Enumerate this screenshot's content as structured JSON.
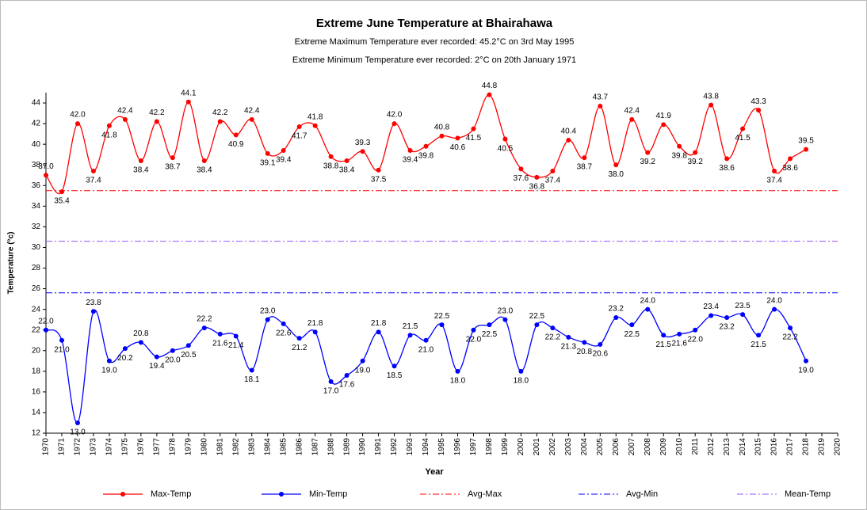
{
  "chart_data": {
    "type": "line",
    "title": "Extreme June Temperature at Bhairahawa",
    "subtitle": [
      "Extreme Maximum Temperature ever recorded: 45.2°C on 3rd May 1995",
      "Extreme Minimum Temperature ever recorded: 2°C on  20th January 1971"
    ],
    "x_label": "Year",
    "y_label": "Temperature (°c)",
    "x": [
      1970,
      1971,
      1972,
      1973,
      1974,
      1975,
      1976,
      1977,
      1978,
      1979,
      1980,
      1981,
      1982,
      1983,
      1984,
      1985,
      1986,
      1987,
      1988,
      1989,
      1990,
      1991,
      1992,
      1993,
      1994,
      1995,
      1996,
      1997,
      1998,
      1999,
      2000,
      2001,
      2002,
      2003,
      2004,
      2005,
      2006,
      2007,
      2008,
      2009,
      2010,
      2011,
      2012,
      2013,
      2014,
      2015,
      2016,
      2017,
      2018
    ],
    "xlim": [
      1970,
      2020
    ],
    "xticks": [
      1970,
      1971,
      1972,
      1973,
      1974,
      1975,
      1976,
      1977,
      1978,
      1979,
      1980,
      1981,
      1982,
      1983,
      1984,
      1985,
      1986,
      1987,
      1988,
      1989,
      1990,
      1991,
      1992,
      1993,
      1994,
      1995,
      1996,
      1997,
      1998,
      1999,
      2000,
      2001,
      2002,
      2003,
      2004,
      2005,
      2006,
      2007,
      2008,
      2009,
      2010,
      2011,
      2012,
      2013,
      2014,
      2015,
      2016,
      2017,
      2018,
      2019,
      2020
    ],
    "ylim": [
      12,
      45
    ],
    "yticks": [
      12,
      14,
      16,
      18,
      20,
      22,
      24,
      26,
      28,
      30,
      32,
      34,
      36,
      38,
      40,
      42,
      44
    ],
    "legend": "bottom",
    "series": [
      {
        "name": "Max-Temp",
        "color": "#ff0000",
        "values": [
          37.0,
          35.4,
          42.0,
          37.4,
          41.8,
          42.4,
          38.4,
          42.2,
          38.7,
          44.1,
          38.4,
          42.2,
          40.9,
          42.4,
          39.1,
          39.4,
          41.7,
          41.8,
          38.8,
          38.4,
          39.3,
          37.5,
          42.0,
          39.4,
          39.8,
          40.8,
          40.6,
          41.5,
          44.8,
          40.5,
          37.6,
          36.8,
          37.4,
          40.4,
          38.7,
          43.7,
          38.0,
          42.4,
          39.2,
          41.9,
          39.8,
          39.2,
          43.8,
          38.6,
          41.5,
          43.3,
          37.4,
          38.6,
          39.5
        ],
        "value_labels": [
          "37.0",
          "35.4",
          "42.0",
          "37.4",
          "41.8",
          "42.4",
          "38.4",
          "42.2",
          "38.7",
          "44.1",
          "38.4",
          "42.2",
          "40.9",
          "42.4",
          "39.1",
          "39.4",
          "41.7",
          "41.8",
          "38.8",
          "38.4",
          "39.3",
          "37.5",
          "42.0",
          "39.4",
          "39.8",
          "40.8",
          "40.6",
          "41.5",
          "44.8",
          "40.5",
          "37.6",
          "36.8",
          "37.4",
          "40.4",
          "38.7",
          "43.7",
          "38.0",
          "42.4",
          "39.2",
          "41.9",
          "39.8",
          "39.2",
          "43.8",
          "38.6",
          "41.5",
          "43.3",
          "37.4",
          "38.6",
          "39.5"
        ]
      },
      {
        "name": "Min-Temp",
        "color": "#0000ff",
        "values": [
          22.0,
          21.0,
          13.0,
          23.8,
          19.0,
          20.2,
          20.8,
          19.4,
          20.0,
          20.5,
          22.2,
          21.6,
          21.4,
          18.1,
          23.0,
          22.6,
          21.2,
          21.8,
          17.0,
          17.6,
          19.0,
          21.8,
          18.5,
          21.5,
          21.0,
          22.5,
          18.0,
          22.0,
          22.5,
          23.0,
          18.0,
          22.5,
          22.2,
          21.3,
          20.8,
          20.6,
          23.2,
          22.5,
          24.0,
          21.5,
          21.6,
          22.0,
          23.4,
          23.2,
          23.5,
          21.5,
          24.0,
          22.2,
          19.0
        ],
        "value_labels": [
          "22.0",
          "21.0",
          "13.0",
          "23.8",
          "19.0",
          "20.2",
          "20.8",
          "19.4",
          "20.0",
          "20.5",
          "22.2",
          "21.6",
          "21.4",
          "18.1",
          "23.0",
          "22.6",
          "21.2",
          "21.8",
          "17.0",
          "17.6",
          "19.0",
          "21.8",
          "18.5",
          "21.5",
          "21.0",
          "22.5",
          "18.0",
          "22.0",
          "22.5",
          "23.0",
          "18.0",
          "22.5",
          "22.2",
          "21.3",
          "20.8",
          "20.6",
          "23.2",
          "22.5",
          "24.0",
          "21.5",
          "21.6",
          "22.0",
          "23.4",
          "23.2",
          "23.5",
          "21.5",
          "24.0",
          "22.2",
          "19.0"
        ]
      },
      {
        "name": "Avg-Max",
        "color": "#ff0000",
        "dash": "dashdot",
        "value": 35.5
      },
      {
        "name": "Avg-Min",
        "color": "#0000ff",
        "dash": "dashdot",
        "value": 25.6
      },
      {
        "name": "Mean-Temp",
        "color": "#9955ff",
        "dash": "dashdot",
        "value": 30.6
      }
    ]
  }
}
